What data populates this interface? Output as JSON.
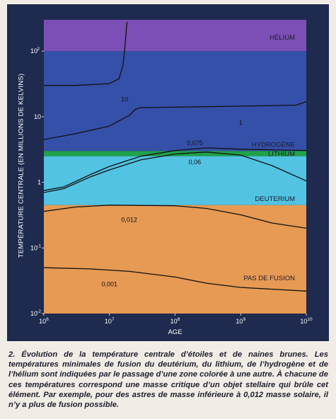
{
  "chart_data": {
    "type": "line",
    "title": "",
    "xlabel": "AGE",
    "ylabel": "TEMPÉRATURE CENTRALE (EN MILLIONS DE KELVINS)",
    "x_scale": "log",
    "y_scale": "log",
    "xlim": [
      1000000,
      10000000000
    ],
    "ylim": [
      0.01,
      300
    ],
    "grid": false,
    "x_ticks": [
      {
        "value": 1000000,
        "base": "10",
        "exp": "6"
      },
      {
        "value": 10000000,
        "base": "10",
        "exp": "7"
      },
      {
        "value": 100000000,
        "base": "10",
        "exp": "8"
      },
      {
        "value": 1000000000,
        "base": "10",
        "exp": "9"
      },
      {
        "value": 10000000000,
        "base": "10",
        "exp": "10"
      }
    ],
    "y_ticks": [
      {
        "value": 100,
        "base": "10",
        "exp": "2"
      },
      {
        "value": 10,
        "base": "10",
        "exp": ""
      },
      {
        "value": 1,
        "base": "1",
        "exp": ""
      },
      {
        "value": 0.1,
        "base": "10",
        "exp": "-1"
      },
      {
        "value": 0.01,
        "base": "10",
        "exp": "-2"
      }
    ],
    "zones": [
      {
        "label": "HÉLIUM",
        "y_from": 100,
        "y_to": 300,
        "color": "#7b4fb5"
      },
      {
        "label": "HYDROGÈNE",
        "y_from": 3,
        "y_to": 100,
        "color": "#3550a8"
      },
      {
        "label": "LITHIUM",
        "y_from": 2.5,
        "y_to": 3,
        "color": "#1fa24a"
      },
      {
        "label": "DEUTERIUM",
        "y_from": 0.45,
        "y_to": 2.5,
        "color": "#52c3e2"
      },
      {
        "label": "PAS DE FUSION",
        "y_from": 0.01,
        "y_to": 0.45,
        "color": "#e79a54"
      }
    ],
    "series": [
      {
        "name": "10",
        "label_at": [
          17000000,
          17
        ],
        "points": [
          [
            1000000,
            30
          ],
          [
            3000000,
            30
          ],
          [
            10000000,
            32
          ],
          [
            14000000,
            38
          ],
          [
            16000000,
            60
          ],
          [
            17000000,
            100
          ],
          [
            18000000,
            200
          ],
          [
            18500000,
            280
          ]
        ]
      },
      {
        "name": "1",
        "label_at": [
          1000000000,
          7.5
        ],
        "points": [
          [
            1000000,
            4.5
          ],
          [
            3000000,
            5.5
          ],
          [
            10000000,
            7.2
          ],
          [
            20000000,
            10.5
          ],
          [
            25000000,
            13
          ],
          [
            30000000,
            13.8
          ],
          [
            100000000,
            14
          ],
          [
            1000000000,
            14.5
          ],
          [
            7000000000,
            15
          ],
          [
            10000000000,
            17
          ]
        ]
      },
      {
        "name": "0,075",
        "label_at": [
          200000000,
          3.7
        ],
        "points": [
          [
            1000000,
            0.75
          ],
          [
            2000000,
            0.85
          ],
          [
            5000000,
            1.3
          ],
          [
            10000000,
            1.75
          ],
          [
            30000000,
            2.5
          ],
          [
            100000000,
            3.05
          ],
          [
            300000000,
            3.35
          ],
          [
            1000000000,
            3.2
          ],
          [
            10000000000,
            3.05
          ]
        ]
      },
      {
        "name": "0,06",
        "label_at": [
          200000000,
          1.9
        ],
        "points": [
          [
            1000000,
            0.7
          ],
          [
            2000000,
            0.8
          ],
          [
            5000000,
            1.2
          ],
          [
            10000000,
            1.55
          ],
          [
            30000000,
            2.2
          ],
          [
            100000000,
            2.7
          ],
          [
            300000000,
            2.9
          ],
          [
            1000000000,
            2.6
          ],
          [
            3000000000,
            1.8
          ],
          [
            10000000000,
            1.05
          ]
        ]
      },
      {
        "name": "0,012",
        "label_at": [
          20000000,
          0.25
        ],
        "points": [
          [
            1000000,
            0.36
          ],
          [
            3000000,
            0.42
          ],
          [
            10000000,
            0.45
          ],
          [
            100000000,
            0.44
          ],
          [
            300000000,
            0.4
          ],
          [
            1000000000,
            0.32
          ],
          [
            3000000000,
            0.24
          ],
          [
            10000000000,
            0.2
          ]
        ]
      },
      {
        "name": "0,001",
        "label_at": [
          10000000,
          0.026
        ],
        "points": [
          [
            1000000,
            0.05
          ],
          [
            5000000,
            0.048
          ],
          [
            20000000,
            0.044
          ],
          [
            100000000,
            0.036
          ],
          [
            300000000,
            0.029
          ],
          [
            1000000000,
            0.025
          ],
          [
            10000000000,
            0.022
          ]
        ]
      }
    ]
  },
  "caption": "2. Évolution de la température centrale d’étoiles et de naines brunes. Les températures minimales de fusion du deutérium, du lithium, de l’hydrogène et de l’hélium sont indiquées par le passage d’une zone colorée à une autre. À chacune de ces températures correspond une masse critique d’un objet stellaire qui brûle cet élément. Par exemple, pour des astres de masse inférieure à 0,012 masse solaire, il n’y a plus de fusion possible."
}
